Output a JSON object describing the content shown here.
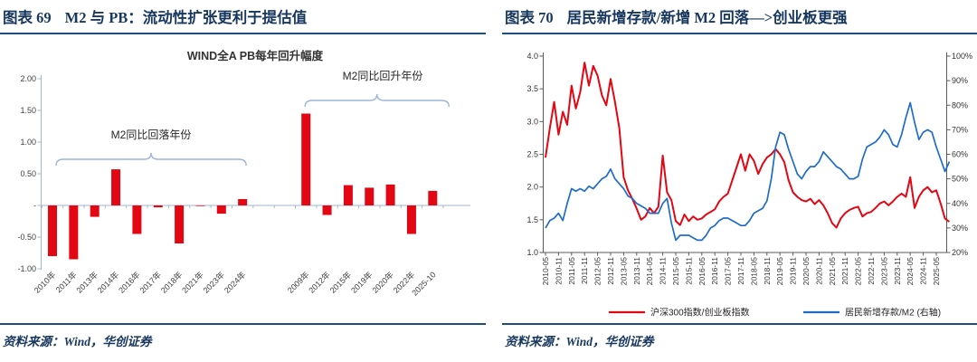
{
  "colors": {
    "heading_navy": "#17375e",
    "rule_navy": "#1f4e79",
    "series_red": "#e30613",
    "series_blue": "#1e6cc8",
    "bracket_blue": "#9cb6d9"
  },
  "figures": [
    {
      "tag": "图表 69",
      "title": "M2 与 PB：流动性扩张更利于提估值",
      "source": "资料来源：Wind，华创证券"
    },
    {
      "tag": "图表 70",
      "title": "居民新增存款/新增 M2 回落—>创业板更强",
      "source": "资料来源：Wind，华创证券"
    }
  ],
  "chart_data": [
    {
      "type": "bar",
      "title": "WIND全A PB每年回升幅度",
      "ylim": [
        -1.0,
        2.0
      ],
      "grid": false,
      "bar_color": "#e30613",
      "axis_color": "#a3b6cc",
      "text_color": "#404040",
      "bracket_color": "#9cb6d9",
      "num_slots": 19,
      "yticks": [
        {
          "v": 2.0,
          "label": "2.00"
        },
        {
          "v": 1.5,
          "label": "1.50"
        },
        {
          "v": 1.0,
          "label": "1.00"
        },
        {
          "v": 0.5,
          "label": "0.50"
        },
        {
          "v": 0.0,
          "label": "-"
        },
        {
          "v": -0.5,
          "label": "-0.50"
        },
        {
          "v": -1.0,
          "label": "-1.00"
        }
      ],
      "annotations": [
        {
          "text": "M2同比回落年份",
          "bracket_slots": [
            0,
            9
          ]
        },
        {
          "text": "M2同比回升年份",
          "bracket_slots": [
            12,
            18
          ]
        }
      ],
      "bars": [
        {
          "label": "2010年",
          "slot": 0,
          "value": -0.8
        },
        {
          "label": "2011年",
          "slot": 1,
          "value": -0.85
        },
        {
          "label": "2013年",
          "slot": 2,
          "value": -0.18
        },
        {
          "label": "2014年",
          "slot": 3,
          "value": 0.57
        },
        {
          "label": "2016年",
          "slot": 4,
          "value": -0.45
        },
        {
          "label": "2017年",
          "slot": 5,
          "value": -0.03
        },
        {
          "label": "2018年",
          "slot": 6,
          "value": -0.6
        },
        {
          "label": "2021年",
          "slot": 7,
          "value": -0.01
        },
        {
          "label": "2023年",
          "slot": 8,
          "value": -0.13
        },
        {
          "label": "2024年",
          "slot": 9,
          "value": 0.1
        },
        {
          "label": "2009年",
          "slot": 12,
          "value": 1.45
        },
        {
          "label": "2012年",
          "slot": 13,
          "value": -0.15
        },
        {
          "label": "2015年",
          "slot": 14,
          "value": 0.32
        },
        {
          "label": "2019年",
          "slot": 15,
          "value": 0.28
        },
        {
          "label": "2020年",
          "slot": 16,
          "value": 0.33
        },
        {
          "label": "2022年",
          "slot": 17,
          "value": -0.45
        },
        {
          "label": "2025-10",
          "slot": 18,
          "value": 0.23
        }
      ]
    },
    {
      "type": "line",
      "grid": false,
      "axis_color": "#595959",
      "text_color": "#333333",
      "legend_position": "bottom",
      "left_ylim": [
        1.0,
        4.0
      ],
      "right_ylim": [
        20,
        100
      ],
      "left_ticks": [
        {
          "v": 4.0,
          "label": "4.0"
        },
        {
          "v": 3.5,
          "label": "3.5"
        },
        {
          "v": 3.0,
          "label": "3.0"
        },
        {
          "v": 2.5,
          "label": "2.5"
        },
        {
          "v": 2.0,
          "label": "2.0"
        },
        {
          "v": 1.5,
          "label": "1.5"
        },
        {
          "v": 1.0,
          "label": "1.0"
        }
      ],
      "right_ticks": [
        {
          "v": 100,
          "label": "100%"
        },
        {
          "v": 90,
          "label": "90%"
        },
        {
          "v": 80,
          "label": "80%"
        },
        {
          "v": 70,
          "label": "70%"
        },
        {
          "v": 60,
          "label": "60%"
        },
        {
          "v": 50,
          "label": "50%"
        },
        {
          "v": 40,
          "label": "40%"
        },
        {
          "v": 30,
          "label": "30%"
        },
        {
          "v": 20,
          "label": "20%"
        }
      ],
      "x_points_per_tick": 3,
      "x_start": "2010-05",
      "x_step_months": 2,
      "x_tick_labels": [
        "2010-05",
        "2010-11",
        "2011-05",
        "2011-11",
        "2012-05",
        "2012-11",
        "2013-05",
        "2013-11",
        "2014-05",
        "2014-11",
        "2015-05",
        "2015-11",
        "2016-05",
        "2016-11",
        "2017-05",
        "2017-11",
        "2018-05",
        "2018-11",
        "2019-05",
        "2019-11",
        "2020-05",
        "2020-11",
        "2021-05",
        "2021-11",
        "2022-05",
        "2022-11",
        "2023-05",
        "2023-11",
        "2024-05",
        "2024-11",
        "2025-05"
      ],
      "series": [
        {
          "name": "沪深300指数/创业板指数",
          "axis": "left",
          "color": "#e30613",
          "values": [
            2.45,
            2.9,
            3.3,
            2.8,
            3.15,
            2.95,
            3.55,
            3.2,
            3.45,
            3.9,
            3.55,
            3.85,
            3.7,
            3.4,
            3.25,
            3.65,
            3.3,
            2.9,
            2.15,
            1.95,
            1.82,
            1.67,
            1.5,
            1.55,
            1.68,
            1.6,
            1.7,
            2.48,
            1.92,
            1.8,
            1.48,
            1.42,
            1.58,
            1.48,
            1.55,
            1.5,
            1.52,
            1.58,
            1.62,
            1.66,
            1.78,
            1.85,
            1.9,
            2.1,
            2.3,
            2.5,
            2.25,
            2.5,
            2.4,
            2.2,
            2.35,
            2.45,
            2.5,
            2.58,
            2.5,
            2.38,
            2.1,
            1.92,
            1.85,
            1.8,
            1.78,
            1.82,
            1.74,
            1.8,
            1.72,
            1.6,
            1.45,
            1.38,
            1.52,
            1.6,
            1.65,
            1.68,
            1.7,
            1.55,
            1.6,
            1.62,
            1.68,
            1.75,
            1.78,
            1.72,
            1.78,
            1.85,
            1.9,
            1.85,
            2.15,
            1.68,
            1.85,
            1.95,
            2.0,
            1.92,
            1.95,
            1.75,
            1.52,
            1.47
          ]
        },
        {
          "name": "居民新增存款/M2 (右轴)",
          "axis": "right",
          "color": "#1e6cc8",
          "values": [
            30,
            33,
            34,
            36,
            33,
            40,
            46,
            45,
            46,
            45,
            47,
            46,
            48,
            50,
            51,
            54,
            50,
            48,
            46,
            43,
            42,
            40,
            39,
            38,
            36,
            36,
            36,
            40,
            42,
            32,
            25,
            27,
            27,
            27,
            26,
            25,
            25,
            27,
            30,
            31,
            33,
            34,
            34,
            33,
            32,
            31,
            31,
            33,
            36,
            37,
            38,
            41,
            50,
            63,
            69,
            68,
            62,
            57,
            52,
            50,
            53,
            55,
            55,
            57,
            61,
            59,
            57,
            55,
            54,
            52,
            50,
            50,
            51,
            58,
            63,
            64,
            65,
            67,
            70,
            68,
            64,
            63,
            68,
            75,
            81,
            73,
            66,
            69,
            70,
            69,
            63,
            58,
            53,
            57
          ]
        }
      ]
    }
  ]
}
